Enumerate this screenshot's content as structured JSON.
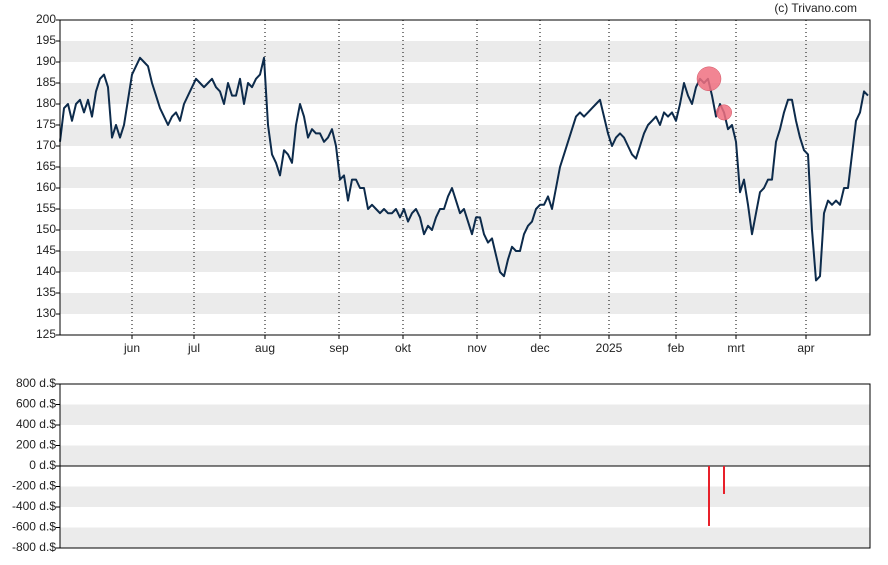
{
  "credit": "(c) Trivano.com",
  "chart_data": [
    {
      "type": "line",
      "color": "#0d2b4b",
      "grid": true,
      "xgrid": true,
      "marker_color": "#f07080",
      "xlim": [
        0,
        202.5
      ],
      "ylim": [
        125,
        200
      ],
      "yticks": [
        125,
        130,
        135,
        140,
        145,
        150,
        155,
        160,
        165,
        170,
        175,
        180,
        185,
        190,
        195,
        200
      ],
      "xticks": [
        {
          "value": 18,
          "label": "jun"
        },
        {
          "value": 33.5,
          "label": "jul"
        },
        {
          "value": 51.25,
          "label": "aug"
        },
        {
          "value": 69.75,
          "label": "sep"
        },
        {
          "value": 85.75,
          "label": "okt"
        },
        {
          "value": 104.25,
          "label": "nov"
        },
        {
          "value": 120,
          "label": "dec"
        },
        {
          "value": 137.25,
          "label": "2025"
        },
        {
          "value": 154,
          "label": "feb"
        },
        {
          "value": 169,
          "label": "mrt"
        },
        {
          "value": 186.5,
          "label": "apr"
        }
      ],
      "values": [
        171,
        179,
        180,
        176,
        180,
        181,
        178,
        181,
        177,
        183,
        186,
        187,
        184,
        172,
        175,
        172,
        175,
        181,
        187,
        189,
        191,
        190,
        189,
        185,
        182,
        179,
        177,
        175,
        177,
        178,
        176,
        180,
        182,
        184,
        186,
        185,
        184,
        185,
        186,
        184,
        183,
        180,
        185,
        182,
        182,
        186,
        180,
        185,
        184,
        186,
        187,
        191,
        175,
        168,
        166,
        163,
        169,
        168,
        166,
        175,
        180,
        177,
        172,
        174,
        173,
        173,
        171,
        172,
        174,
        170,
        162,
        163,
        157,
        162,
        162,
        160,
        160,
        155,
        156,
        155,
        154,
        155,
        154,
        154,
        155,
        153,
        155,
        152,
        154,
        155,
        153,
        149,
        151,
        150,
        153,
        155,
        155,
        158,
        160,
        157,
        154,
        155,
        152,
        149,
        153,
        153,
        149,
        147,
        148,
        144,
        140,
        139,
        143,
        146,
        145,
        145,
        149,
        151,
        152,
        155,
        156,
        156,
        158,
        155,
        160,
        165,
        168,
        171,
        174,
        177,
        178,
        177,
        178,
        179,
        180,
        181,
        177,
        173,
        170,
        172,
        173,
        172,
        170,
        168,
        167,
        170,
        173,
        175,
        176,
        177,
        175,
        178,
        177,
        178,
        176,
        180,
        185,
        182,
        180,
        184,
        186,
        185,
        186,
        182,
        177,
        180,
        178,
        174,
        175,
        171,
        159,
        162,
        156,
        149,
        154,
        159,
        160,
        162,
        162,
        171,
        174,
        178,
        181,
        181,
        176,
        172,
        169,
        168,
        150,
        138,
        139,
        154,
        157,
        156,
        157,
        156,
        160,
        160,
        168,
        176,
        178,
        183,
        182
      ]
    },
    {
      "type": "bar",
      "color": "#e8202a",
      "grid": true,
      "xlim": [
        0,
        202.5
      ],
      "ylim": [
        -800,
        800
      ],
      "yticks": [
        {
          "value": -800,
          "label": "-800 d.$"
        },
        {
          "value": -600,
          "label": "-600 d.$"
        },
        {
          "value": -400,
          "label": "-400 d.$"
        },
        {
          "value": -200,
          "label": "-200 d.$"
        },
        {
          "value": 0,
          "label": "0 d.$"
        },
        {
          "value": 200,
          "label": "200 d.$"
        },
        {
          "value": 400,
          "label": "400 d.$"
        },
        {
          "value": 600,
          "label": "600 d.$"
        },
        {
          "value": 800,
          "label": "800 d.$"
        }
      ],
      "x": [
        162.25,
        166
      ],
      "values": [
        -585,
        -273
      ]
    }
  ]
}
